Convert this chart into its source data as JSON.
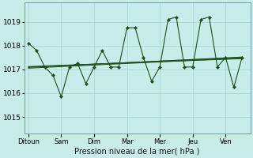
{
  "background_color": "#c8ece9",
  "grid_color": "#a8d8d4",
  "line_color": "#1a4f1a",
  "marker_color": "#1a4f1a",
  "xlabel": "Pression niveau de la mer( hPa )",
  "ylim": [
    1014.3,
    1019.8
  ],
  "yticks": [
    1015,
    1016,
    1017,
    1018,
    1019
  ],
  "x_labels": [
    "Ditoun",
    "Sam",
    "Dim",
    "Mar",
    "Mer",
    "Jeu",
    "Ven"
  ],
  "series1_x": [
    0,
    1,
    2,
    3,
    4,
    5,
    6,
    7,
    8,
    9,
    10,
    11,
    12,
    13,
    14,
    15,
    16,
    17,
    18,
    19,
    20,
    21,
    22,
    23,
    24,
    25,
    26
  ],
  "series1_y": [
    1018.1,
    1017.8,
    1017.1,
    1016.75,
    1015.85,
    1017.1,
    1017.25,
    1016.4,
    1017.1,
    1017.8,
    1017.1,
    1017.1,
    1018.75,
    1018.75,
    1017.5,
    1016.5,
    1017.1,
    1019.1,
    1019.2,
    1017.1,
    1017.1,
    1019.1,
    1019.2,
    1017.1,
    1017.5,
    1016.25,
    1017.5
  ],
  "trend1_x": [
    0,
    26
  ],
  "trend1_y": [
    1017.1,
    1017.5
  ],
  "trend2_x": [
    0,
    26
  ],
  "trend2_y": [
    1017.12,
    1017.45
  ],
  "trend3_x": [
    0,
    26
  ],
  "trend3_y": [
    1017.08,
    1017.52
  ],
  "trend4_x": [
    0,
    26
  ],
  "trend4_y": [
    1017.05,
    1017.48
  ],
  "n_x_ticks": 7,
  "x_tick_positions": [
    0,
    4,
    8,
    12,
    16,
    20,
    24
  ],
  "xlim": [
    -0.5,
    27
  ]
}
